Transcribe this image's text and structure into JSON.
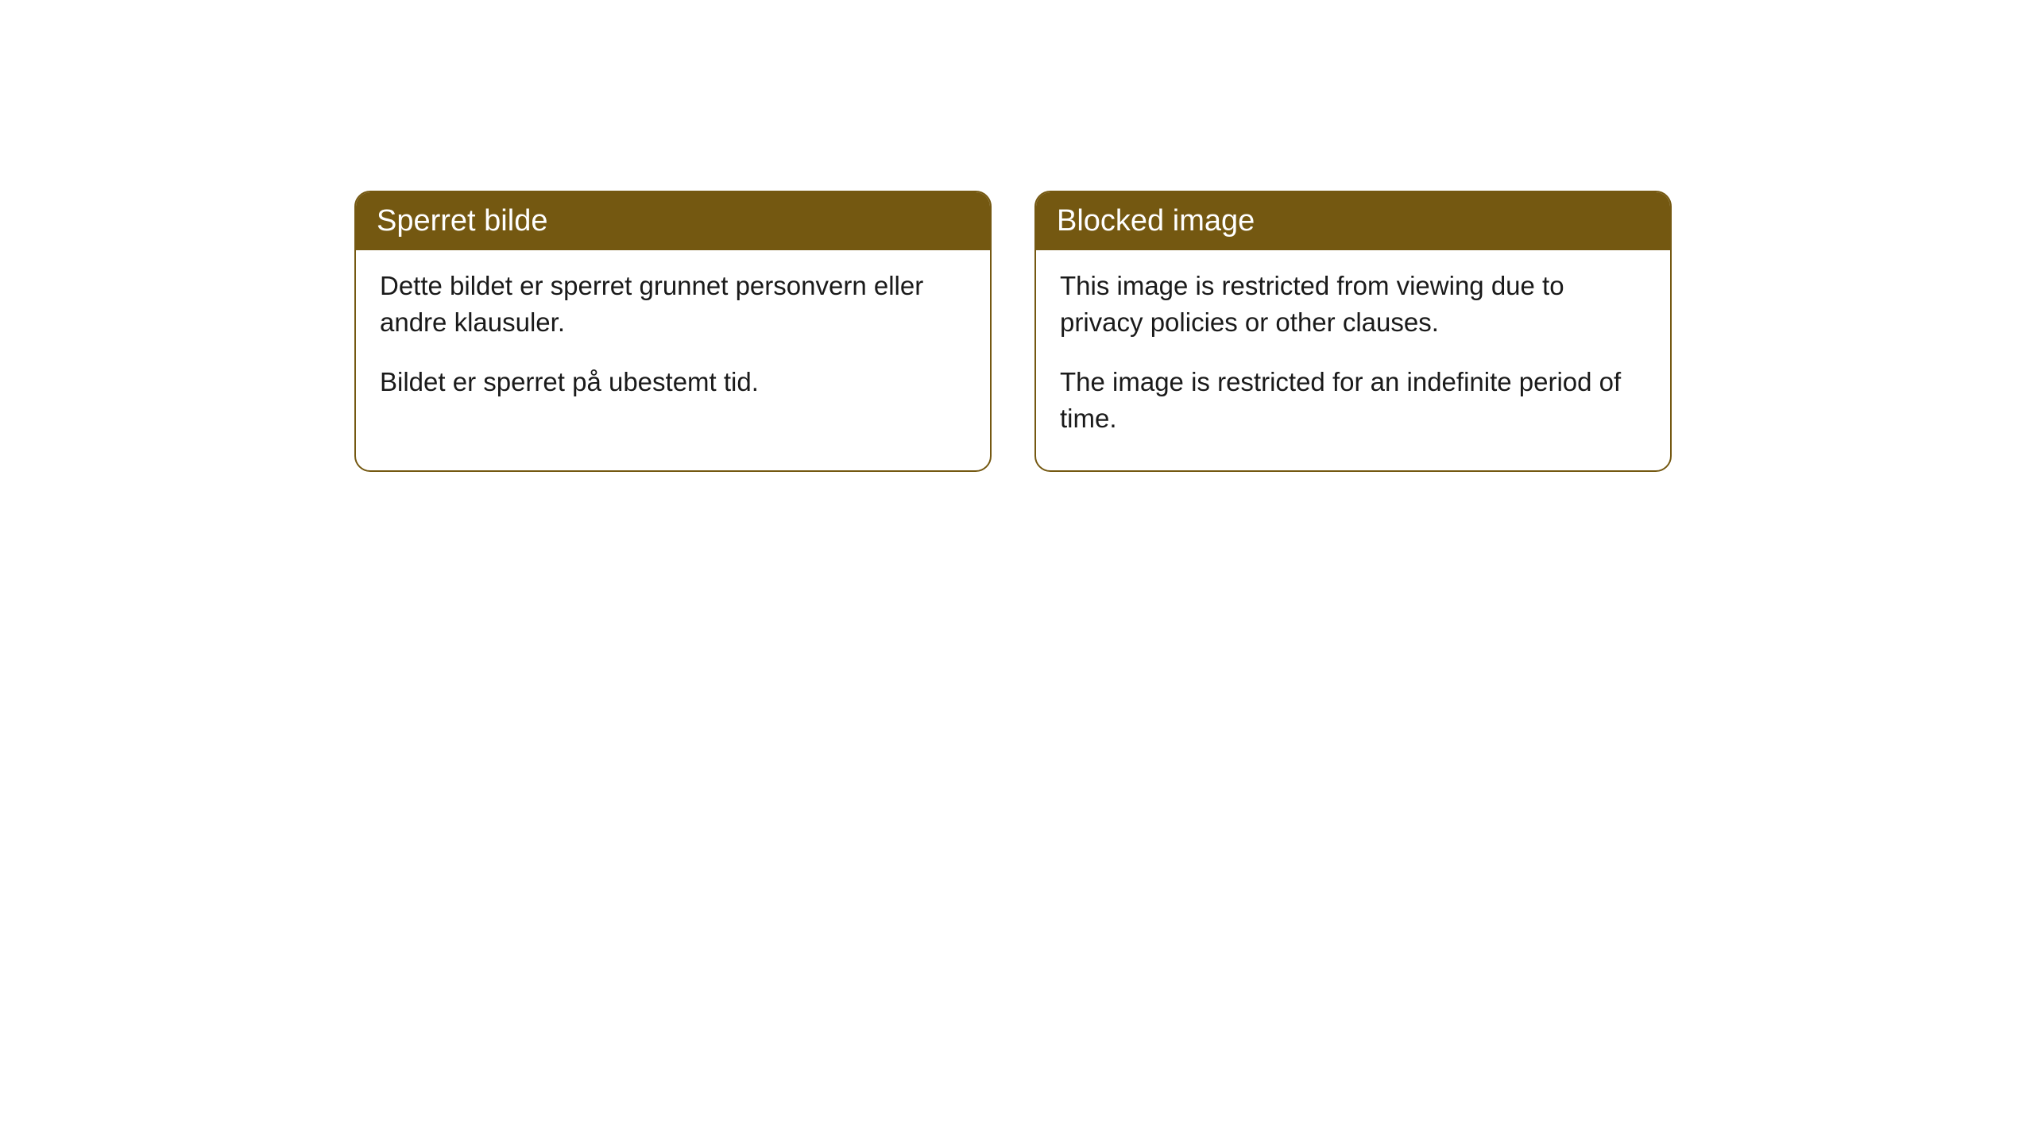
{
  "cards": [
    {
      "title": "Sperret bilde",
      "paragraph1": "Dette bildet er sperret grunnet personvern eller andre klausuler.",
      "paragraph2": "Bildet er sperret på ubestemt tid."
    },
    {
      "title": "Blocked image",
      "paragraph1": "This image is restricted from viewing due to privacy policies or other clauses.",
      "paragraph2": "The image is restricted for an indefinite period of time."
    }
  ],
  "styling": {
    "card_border_color": "#745811",
    "card_header_bg": "#745811",
    "card_header_text_color": "#ffffff",
    "card_body_text_color": "#1a1a1a",
    "page_bg": "#ffffff",
    "border_radius": 20,
    "header_font_size": 38,
    "body_font_size": 33
  }
}
